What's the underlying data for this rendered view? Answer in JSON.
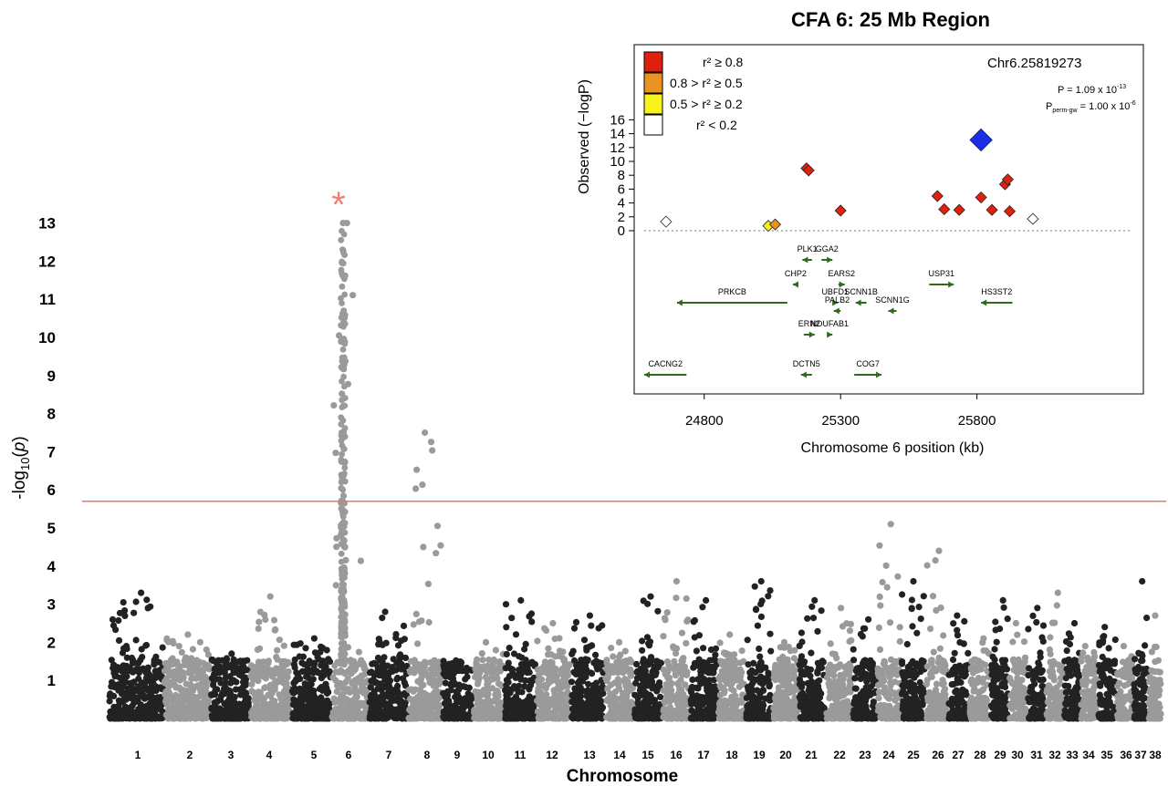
{
  "chart_data": [
    {
      "type": "scatter",
      "subtype": "manhattan",
      "xlabel": "Chromosome",
      "ylabel": "-log10(p)",
      "ylabel_parts": {
        "pre": "-log",
        "sub": "10",
        "open": "(",
        "var": "p",
        "close": ")"
      },
      "y_ticks": [
        "1",
        "2",
        "3",
        "4",
        "5",
        "6",
        "7",
        "8",
        "9",
        "10",
        "11",
        "12",
        "13"
      ],
      "ylim": [
        0,
        14
      ],
      "significance_threshold": 5.7,
      "threshold_color": "#e8736c",
      "peak_marker": "*",
      "peak_marker_color": "#f08072",
      "colors": [
        "#222222",
        "#9a9a9a"
      ],
      "categories": [
        "1",
        "2",
        "3",
        "4",
        "5",
        "6",
        "7",
        "8",
        "9",
        "10",
        "11",
        "12",
        "13",
        "14",
        "15",
        "16",
        "17",
        "18",
        "19",
        "20",
        "21",
        "22",
        "23",
        "24",
        "25",
        "26",
        "27",
        "28",
        "29",
        "30",
        "31",
        "32",
        "33",
        "34",
        "35",
        "36",
        "37",
        "38"
      ],
      "chromosome_peak_values": [
        3.3,
        2.2,
        1.7,
        3.2,
        2.1,
        13.0,
        2.8,
        7.5,
        1.4,
        2.0,
        3.1,
        2.5,
        2.7,
        2.0,
        3.2,
        3.6,
        3.1,
        2.2,
        3.6,
        2.0,
        3.1,
        2.9,
        2.6,
        5.1,
        3.6,
        4.4,
        2.7,
        2.1,
        3.1,
        2.5,
        2.9,
        3.3,
        2.5,
        1.9,
        2.4,
        1.9,
        3.6,
        2.7
      ],
      "grid": false,
      "legend": "none"
    },
    {
      "type": "scatter",
      "subtype": "regional-association",
      "title": "CFA 6: 25 Mb Region",
      "xlabel": "Chromosome 6 position (kb)",
      "ylabel": "Observed (−logP)",
      "x_ticks": [
        "24800",
        "25300",
        "25800"
      ],
      "y_ticks": [
        "0",
        "2",
        "4",
        "6",
        "8",
        "10",
        "12",
        "14",
        "16"
      ],
      "xlim": [
        24580,
        26370
      ],
      "ylim": [
        -21.5,
        17.5
      ],
      "top_snp": {
        "label": "Chr6.25819273",
        "x": 25815,
        "y": 13.1,
        "p_text": "P = 1.09 x 10",
        "p_exp": "-13",
        "perm_text_a": "P",
        "perm_sub": "perm-gw",
        "perm_text_b": " = 1.00 x 10",
        "perm_exp": "-6",
        "color": "#1a2ee6"
      },
      "legend_entries": [
        {
          "label": "r² ≥ 0.8",
          "color": "#e0200e"
        },
        {
          "label": "0.8 > r² ≥ 0.5",
          "color": "#eb9322"
        },
        {
          "label": "0.5 > r² ≥ 0.2",
          "color": "#f6f21a"
        },
        {
          "label": "r² < 0.2",
          "color": "#ffffff"
        }
      ],
      "legend_position": "top-left",
      "points": [
        {
          "x": 24660,
          "y": 1.3,
          "r2_class": 3
        },
        {
          "x": 25035,
          "y": 0.7,
          "r2_class": 2
        },
        {
          "x": 25060,
          "y": 0.9,
          "r2_class": 1
        },
        {
          "x": 25175,
          "y": 9.0,
          "r2_class": 0
        },
        {
          "x": 25183,
          "y": 8.7,
          "r2_class": 0
        },
        {
          "x": 25300,
          "y": 2.9,
          "r2_class": 0
        },
        {
          "x": 25655,
          "y": 5.0,
          "r2_class": 0
        },
        {
          "x": 25680,
          "y": 3.1,
          "r2_class": 0
        },
        {
          "x": 25735,
          "y": 3.0,
          "r2_class": 0
        },
        {
          "x": 25815,
          "y": 4.8,
          "r2_class": 0
        },
        {
          "x": 25855,
          "y": 3.0,
          "r2_class": 0
        },
        {
          "x": 25903,
          "y": 6.7,
          "r2_class": 0
        },
        {
          "x": 25913,
          "y": 7.4,
          "r2_class": 0
        },
        {
          "x": 25920,
          "y": 2.8,
          "r2_class": 0
        },
        {
          "x": 26005,
          "y": 1.7,
          "r2_class": 3
        }
      ],
      "genes": [
        {
          "name": "PLK1",
          "start": 25160,
          "end": 25195,
          "direction": "-",
          "row": 0
        },
        {
          "name": "GGA2",
          "start": 25230,
          "end": 25270,
          "direction": "+",
          "row": 0
        },
        {
          "name": "CHP2",
          "start": 25125,
          "end": 25145,
          "direction": "-",
          "row": 1
        },
        {
          "name": "EARS2",
          "start": 25292,
          "end": 25315,
          "direction": "+",
          "row": 1
        },
        {
          "name": "USP31",
          "start": 25625,
          "end": 25715,
          "direction": "+",
          "row": 1
        },
        {
          "name": "PRKCB",
          "start": 24700,
          "end": 25105,
          "direction": "-",
          "row": 2
        },
        {
          "name": "UBFD1",
          "start": 25270,
          "end": 25290,
          "direction": "+",
          "row": 2
        },
        {
          "name": "SCNN1B",
          "start": 25355,
          "end": 25395,
          "direction": "-",
          "row": 2
        },
        {
          "name": "HS3ST2",
          "start": 25815,
          "end": 25930,
          "direction": "-",
          "row": 2
        },
        {
          "name": "PALB2",
          "start": 25275,
          "end": 25300,
          "direction": "-",
          "row": 3
        },
        {
          "name": "SCNN1G",
          "start": 25475,
          "end": 25505,
          "direction": "-",
          "row": 3
        },
        {
          "name": "ERN2",
          "start": 25165,
          "end": 25205,
          "direction": "+",
          "row": 4
        },
        {
          "name": "NDUFAB1",
          "start": 25250,
          "end": 25270,
          "direction": "+",
          "row": 4
        },
        {
          "name": "CACNG2",
          "start": 24580,
          "end": 24735,
          "direction": "-",
          "row": 5
        },
        {
          "name": "DCTN5",
          "start": 25155,
          "end": 25195,
          "direction": "-",
          "row": 5
        },
        {
          "name": "COG7",
          "start": 25350,
          "end": 25450,
          "direction": "+",
          "row": 5
        }
      ],
      "gene_color": "#2f6a1e",
      "zero_line": "dotted"
    }
  ]
}
